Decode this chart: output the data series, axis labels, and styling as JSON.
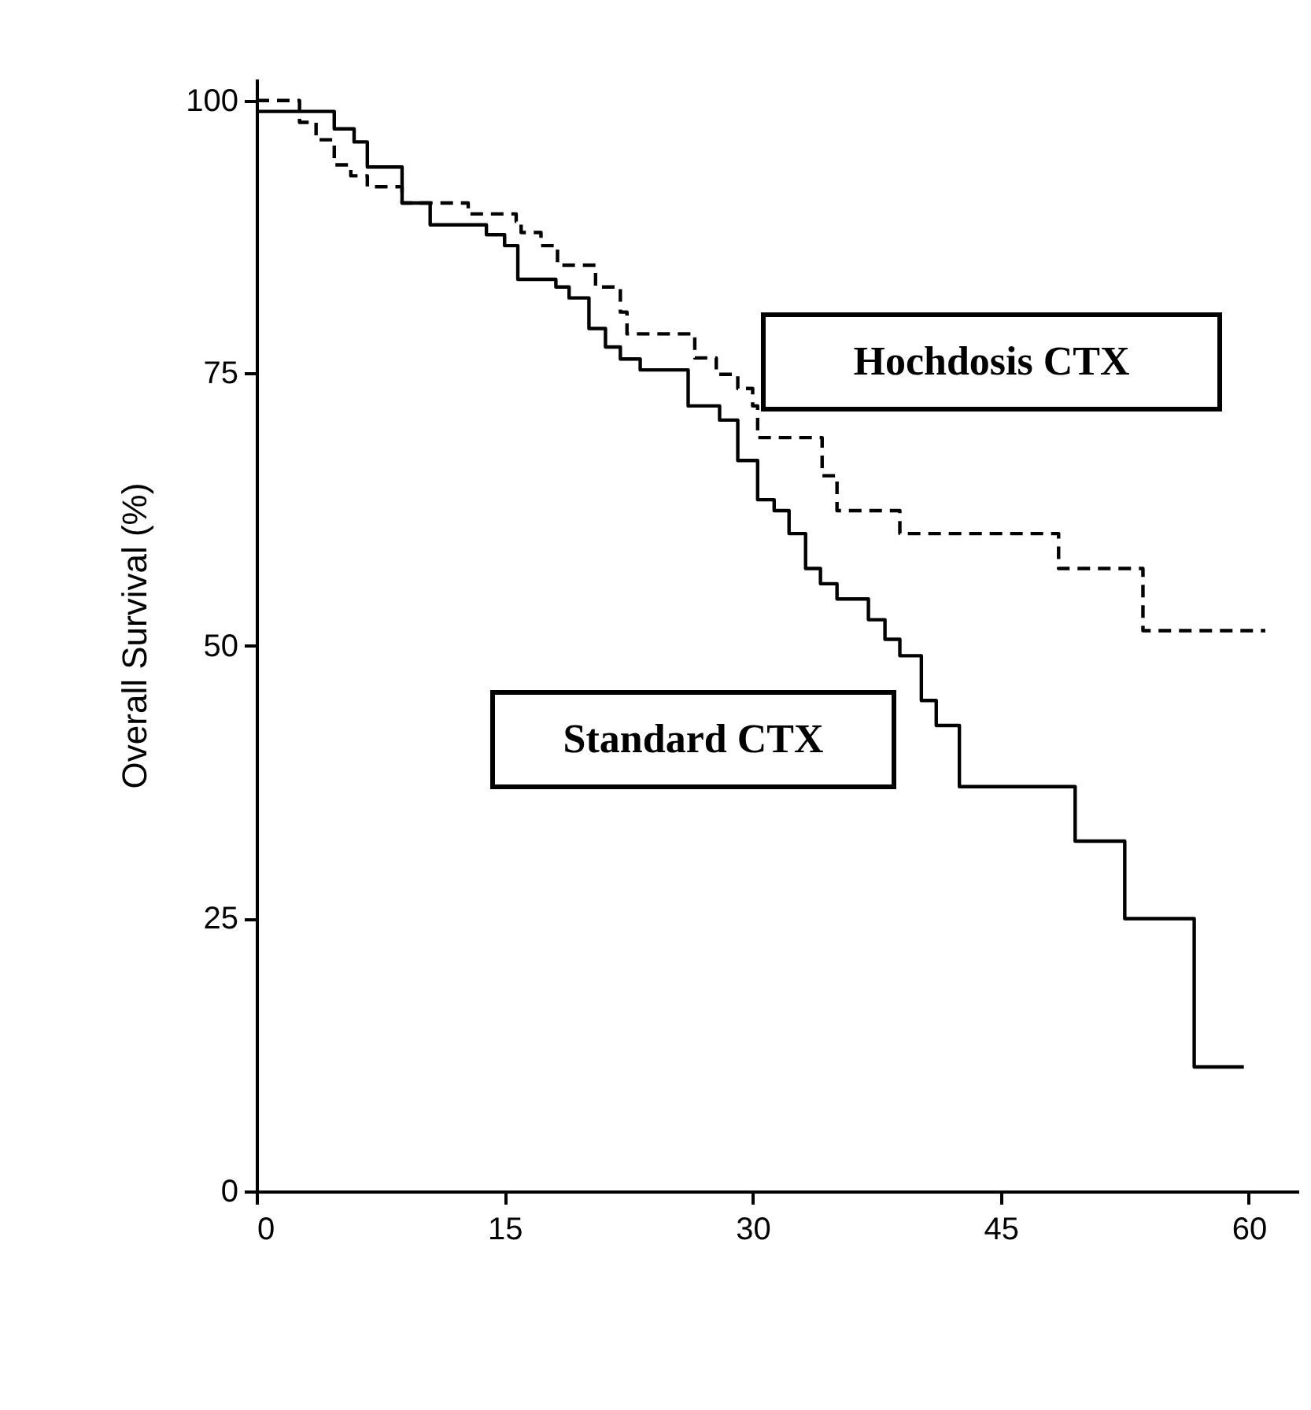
{
  "chart_data": {
    "type": "step",
    "ylabel": "Overall Survival (%)",
    "xlim": [
      0,
      63
    ],
    "ylim": [
      0,
      102
    ],
    "xticks": [
      0,
      15,
      30,
      45,
      60
    ],
    "yticks": [
      0,
      25,
      50,
      75,
      100
    ],
    "grid": false,
    "series": [
      {
        "name": "Hochdosis CTX",
        "color": "#000000",
        "line_style": "dashed",
        "x": [
          0,
          2.6,
          3.6,
          4.7,
          5.7,
          6.7,
          8.8,
          12.8,
          15.7,
          16.0,
          17.2,
          18.2,
          20.5,
          22.0,
          22.4,
          26.5,
          27.8,
          29.1,
          30.0,
          30.3,
          34.2,
          35.1,
          38.9,
          48.5,
          53.6,
          61.0
        ],
        "values": [
          100,
          98,
          96.4,
          94.1,
          93.1,
          92.1,
          90.6,
          89.6,
          88.9,
          87.9,
          86.7,
          84.9,
          82.9,
          80.6,
          78.6,
          76.4,
          74.9,
          73.6,
          72.0,
          69.1,
          65.6,
          62.4,
          60.3,
          57.1,
          51.4,
          51.4
        ]
      },
      {
        "name": "Standard CTX",
        "color": "#000000",
        "line_style": "solid",
        "x": [
          0,
          4.7,
          5.9,
          6.7,
          8.8,
          10.5,
          13.9,
          15.0,
          15.8,
          18.1,
          18.9,
          20.1,
          21.1,
          22.0,
          23.2,
          26.1,
          28.0,
          29.1,
          30.3,
          31.3,
          32.2,
          33.2,
          34.1,
          35.1,
          37.0,
          38.0,
          38.9,
          40.2,
          41.1,
          42.5,
          49.5,
          52.5,
          56.7,
          59.7
        ],
        "values": [
          99,
          97.4,
          96.2,
          93.9,
          90.6,
          88.6,
          87.7,
          86.7,
          83.6,
          82.9,
          81.9,
          79.1,
          77.4,
          76.3,
          75.3,
          72.0,
          70.7,
          67.0,
          63.4,
          62.4,
          60.3,
          57.1,
          55.7,
          54.3,
          52.4,
          50.6,
          49.1,
          45.0,
          42.7,
          37.1,
          32.1,
          25.0,
          11.4,
          11.4
        ]
      }
    ]
  }
}
